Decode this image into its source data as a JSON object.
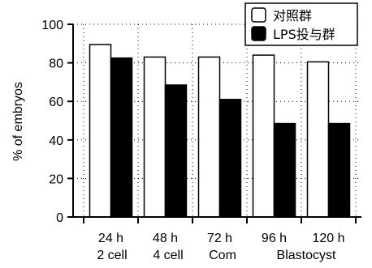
{
  "chart_data": {
    "type": "bar",
    "title": "",
    "xlabel": "",
    "ylabel": "% of embryos",
    "ylim": [
      0,
      100
    ],
    "yticks": [
      0,
      20,
      40,
      60,
      80,
      100
    ],
    "grid": "dotted",
    "categories": [
      "24 h",
      "48 h",
      "72 h",
      "96 h",
      "120 h"
    ],
    "category_groups": [
      "2 cell",
      "4 cell",
      "Com",
      "Blastocyst"
    ],
    "series": [
      {
        "name": "对照群",
        "color": "#ffffff",
        "values": [
          89.5,
          83,
          83,
          84,
          80.5
        ]
      },
      {
        "name": "LPS投与群",
        "color": "#000000",
        "values": [
          82.5,
          68.5,
          61,
          48.5,
          48.5
        ]
      }
    ],
    "legend_position": "top-right"
  }
}
